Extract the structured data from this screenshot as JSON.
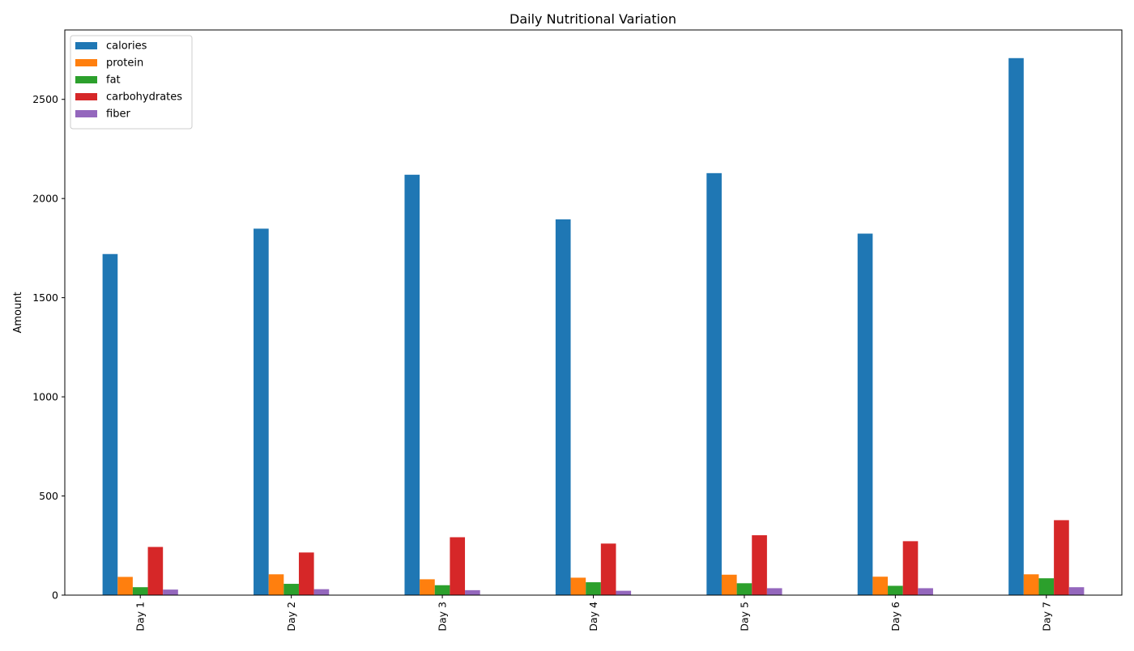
{
  "chart_data": {
    "type": "bar",
    "title": "Daily Nutritional Variation",
    "xlabel": "",
    "ylabel": "Amount",
    "ylim": [
      0,
      2850
    ],
    "yticks": [
      0,
      500,
      1000,
      1500,
      2000,
      2500
    ],
    "grid": false,
    "legend_position": "top-left",
    "categories": [
      "Day 1",
      "Day 2",
      "Day 3",
      "Day 4",
      "Day 5",
      "Day 6",
      "Day 7"
    ],
    "series": [
      {
        "name": "calories",
        "color": "#1f77b4",
        "values": [
          1720,
          1848,
          2120,
          1895,
          2128,
          1823,
          2708
        ]
      },
      {
        "name": "protein",
        "color": "#ff7f0e",
        "values": [
          92,
          105,
          80,
          88,
          103,
          93,
          105
        ]
      },
      {
        "name": "fat",
        "color": "#2ca02c",
        "values": [
          40,
          57,
          50,
          65,
          60,
          47,
          85
        ]
      },
      {
        "name": "carbohydrates",
        "color": "#d62728",
        "values": [
          243,
          215,
          292,
          260,
          302,
          272,
          378
        ]
      },
      {
        "name": "fiber",
        "color": "#9467bd",
        "values": [
          28,
          30,
          25,
          22,
          35,
          35,
          40
        ]
      }
    ]
  }
}
